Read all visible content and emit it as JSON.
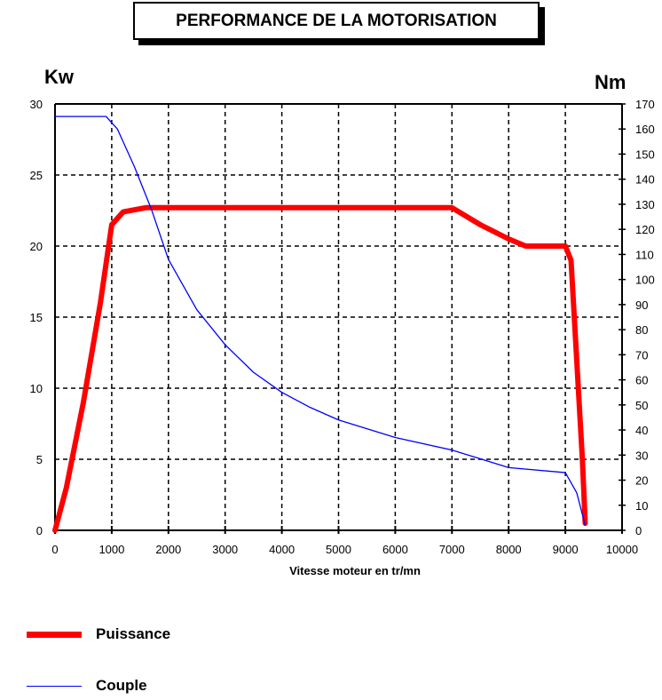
{
  "title": "PERFORMANCE DE LA MOTORISATION",
  "chart_data": {
    "type": "line",
    "title": "PERFORMANCE DE LA MOTORISATION",
    "xlabel": "Vitesse moteur en tr/mn",
    "ylabel_left": "Kw",
    "ylabel_right": "Nm",
    "xlim": [
      0,
      10000
    ],
    "ylim_left": [
      0,
      30
    ],
    "ylim_right": [
      0,
      170
    ],
    "x_ticks": [
      "0",
      "1000",
      "2000",
      "3000",
      "4000",
      "5000",
      "6000",
      "7000",
      "8000",
      "9000",
      "10000"
    ],
    "y_left_ticks": [
      "0",
      "5",
      "10",
      "15",
      "20",
      "25",
      "30"
    ],
    "y_right_ticks": [
      "0",
      "10",
      "20",
      "30",
      "40",
      "50",
      "60",
      "70",
      "80",
      "90",
      "100",
      "110",
      "120",
      "130",
      "140",
      "150",
      "160",
      "170"
    ],
    "grid": true,
    "legend_position": "bottom-left",
    "series": [
      {
        "name": "Puissance",
        "axis": "left",
        "color": "#ff0000",
        "x": [
          0,
          200,
          500,
          800,
          1000,
          1200,
          1600,
          7000,
          7500,
          8000,
          8300,
          9000,
          9100,
          9200,
          9300,
          9350
        ],
        "y": [
          0,
          3,
          9,
          16,
          21.5,
          22.4,
          22.7,
          22.7,
          21.5,
          20.5,
          20,
          20,
          19,
          12,
          5,
          0.5
        ]
      },
      {
        "name": "Couple",
        "axis": "right",
        "color": "#0000ff",
        "x": [
          0,
          900,
          1100,
          1400,
          1700,
          2000,
          2500,
          3000,
          3500,
          4000,
          4500,
          5000,
          6000,
          7000,
          8000,
          9000,
          9200,
          9350
        ],
        "y": [
          165,
          165,
          160,
          145,
          128,
          108,
          88,
          74,
          63,
          55,
          49,
          44,
          37,
          32,
          25,
          23,
          15,
          2
        ]
      }
    ]
  }
}
